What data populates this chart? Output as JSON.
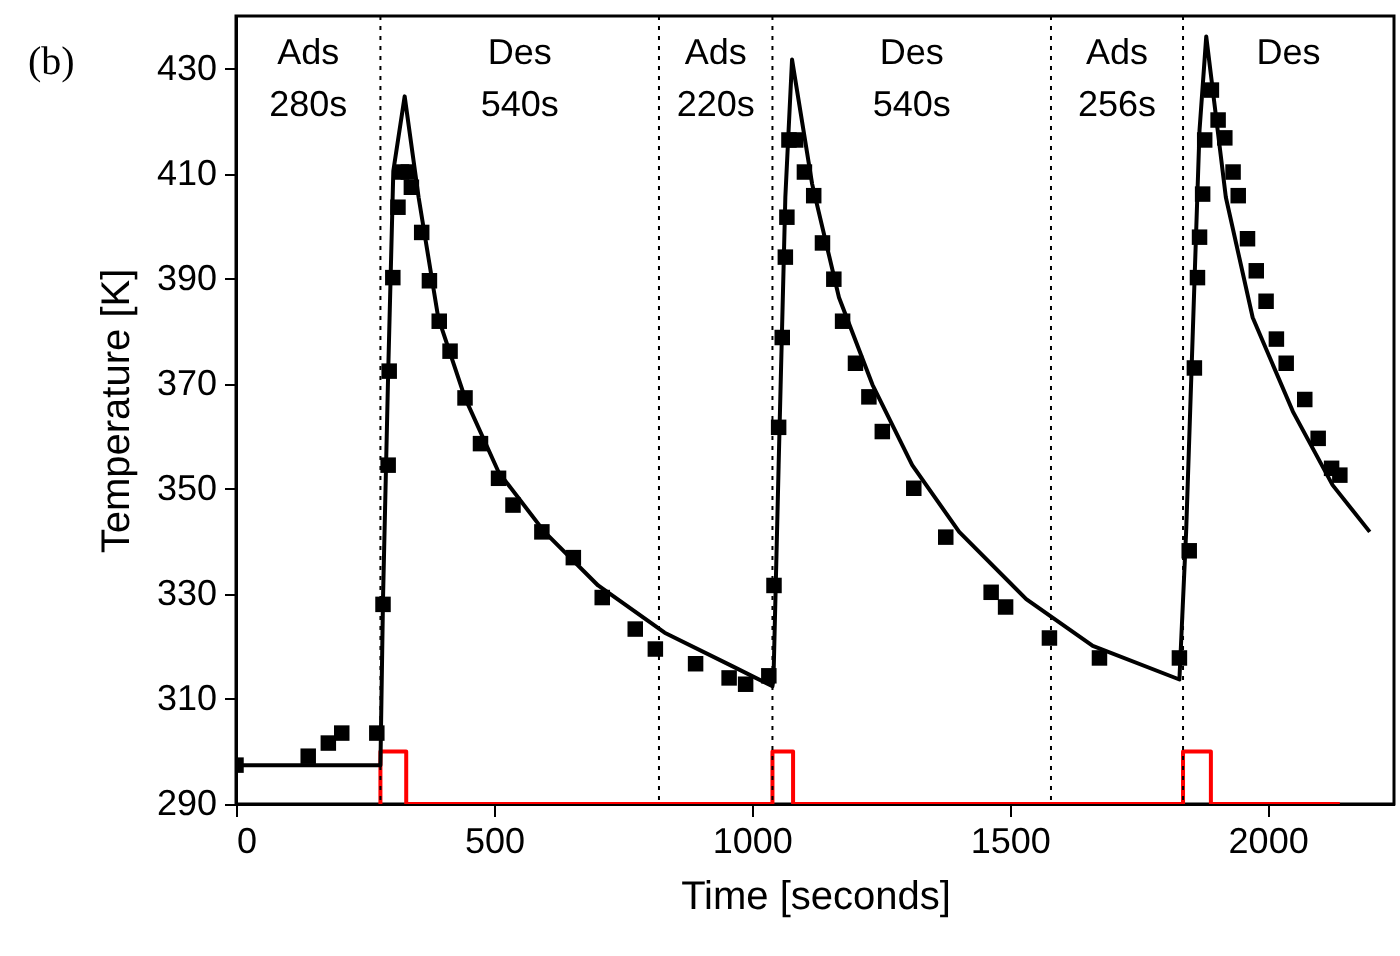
{
  "chart_data": {
    "type": "line",
    "xlabel": "Time [seconds]",
    "ylabel": "Temperature [K]",
    "xlim": [
      0,
      2245
    ],
    "ylim": [
      290,
      440
    ],
    "xticks": [
      0,
      500,
      1000,
      1500,
      2000
    ],
    "yticks": [
      290,
      310,
      330,
      350,
      370,
      390,
      410,
      430
    ],
    "grid": false,
    "series": [
      {
        "color": "#ff0000",
        "x": [
          280,
          280,
          330,
          330,
          1040,
          1040,
          1080,
          1080,
          1836,
          1836,
          1890,
          1890,
          2140
        ],
        "values": [
          290,
          300,
          300,
          290,
          290,
          300,
          300,
          290,
          290,
          300,
          300,
          290,
          290
        ]
      },
      {
        "color": "#000000",
        "x": [
          0,
          280,
          285,
          295,
          305,
          327,
          354,
          392,
          444,
          509,
          598,
          702,
          831,
          961,
          1040,
          1042,
          1052,
          1065,
          1078,
          1117,
          1169,
          1234,
          1311,
          1402,
          1532,
          1661,
          1829,
          1842,
          1855,
          1868,
          1881,
          1919,
          1971,
          2049,
          2126,
          2198
        ],
        "values": [
          297.4,
          297.4,
          329,
          372,
          410.5,
          424.7,
          405.5,
          382.6,
          367.3,
          353.2,
          341.8,
          331.6,
          322.6,
          316.3,
          312.4,
          313.7,
          354.5,
          405.5,
          431.7,
          408,
          386.4,
          369.8,
          354.5,
          341.8,
          329,
          320.1,
          313.7,
          341.8,
          380,
          418.3,
          436.1,
          405.5,
          382.6,
          364.7,
          350.7,
          341.8
        ]
      },
      {
        "type": "scatter",
        "color": "#000000",
        "marker": "square",
        "x": [
          0,
          140,
          179,
          205,
          273,
          285,
          295,
          297,
          304,
          314,
          321,
          334,
          340,
          360,
          375,
          394,
          415,
          444,
          474,
          509,
          537,
          593,
          654,
          710,
          774,
          813,
          891,
          956,
          988,
          1033,
          1043,
          1052,
          1059,
          1065,
          1068,
          1072,
          1085,
          1102,
          1120,
          1137,
          1159,
          1176,
          1201,
          1227,
          1253,
          1314,
          1376,
          1464,
          1492,
          1577,
          1674,
          1829,
          1848,
          1858,
          1864,
          1868,
          1874,
          1878,
          1891,
          1904,
          1917,
          1933,
          1943,
          1961,
          1978,
          1997,
          2017,
          2036,
          2072,
          2098,
          2124,
          2140
        ],
        "values": [
          297.4,
          299.1,
          301.6,
          303.5,
          303.5,
          328,
          354.5,
          372.4,
          390.2,
          403.6,
          410.3,
          410.3,
          407.4,
          398.8,
          389.6,
          381.9,
          376.2,
          367.3,
          358.6,
          352,
          346.9,
          341.8,
          336.9,
          329.3,
          323.3,
          319.5,
          316.7,
          314,
          312.8,
          314.4,
          331.6,
          361.7,
          378.8,
          394.1,
          401.7,
          416.4,
          416.4,
          410.3,
          405.8,
          396.8,
          389.9,
          381.9,
          373.9,
          367.5,
          360.9,
          350.1,
          340.8,
          330.3,
          327.5,
          321.6,
          317.8,
          317.8,
          338.2,
          373,
          390.2,
          397.9,
          406.1,
          416.4,
          425.9,
          420.2,
          416.8,
          410.3,
          405.8,
          397.6,
          391.5,
          385.7,
          378.5,
          373.9,
          367,
          359.6,
          353.9,
          352.6
        ]
      }
    ],
    "ref_lines": [
      {
        "axis": "x",
        "value": 280,
        "line_style": "dotted",
        "color": "#000000"
      },
      {
        "axis": "x",
        "value": 820,
        "line_style": "dotted",
        "color": "#000000"
      },
      {
        "axis": "x",
        "value": 1040,
        "line_style": "dotted",
        "color": "#000000"
      },
      {
        "axis": "x",
        "value": 1580,
        "line_style": "dotted",
        "color": "#000000"
      },
      {
        "axis": "x",
        "value": 1836,
        "line_style": "dotted",
        "color": "#000000"
      }
    ],
    "annotations": [
      "(b)",
      "Ads\n280s",
      "Des\n540s",
      "Ads\n220s",
      "Des\n540s",
      "Ads\n256s",
      "Des"
    ]
  }
}
